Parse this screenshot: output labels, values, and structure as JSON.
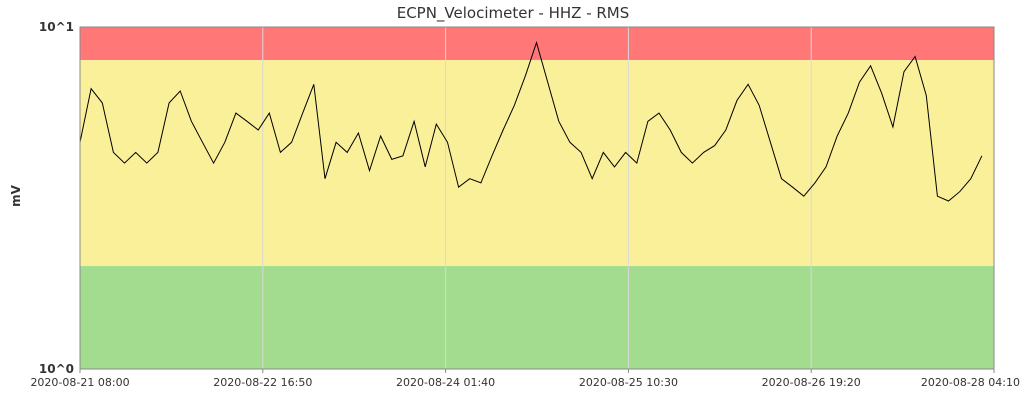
{
  "chart_data": {
    "type": "line",
    "title": "ECPN_Velocimeter - HHZ - RMS",
    "xlabel": "",
    "ylabel": "mV",
    "yscale": "log",
    "ylim": [
      1,
      10
    ],
    "yticks": [
      "10^0",
      "10^1"
    ],
    "xlim": [
      "2020-08-21 08:00",
      "2020-08-28 04:10"
    ],
    "xticks": [
      "2020-08-21 08:00",
      "2020-08-22 16:50",
      "2020-08-24 01:40",
      "2020-08-25 10:30",
      "2020-08-26 19:20",
      "2020-08-28 04:10"
    ],
    "bands": [
      {
        "from": 8.0,
        "to": 10.0,
        "color": "#ff7777"
      },
      {
        "from": 2.0,
        "to": 8.0,
        "color": "#fbf09a"
      },
      {
        "from": 1.0,
        "to": 2.0,
        "color": "#a4dc8f"
      }
    ],
    "line_color": "#000000",
    "grid": true,
    "series": [
      {
        "x": [
          "2020-08-21 08:00",
          "2020-08-21 10:00",
          "2020-08-21 12:00",
          "2020-08-21 14:00",
          "2020-08-21 16:00",
          "2020-08-21 18:00",
          "2020-08-21 20:00",
          "2020-08-21 22:00",
          "2020-08-22 00:00",
          "2020-08-22 02:00",
          "2020-08-22 04:00",
          "2020-08-22 06:00",
          "2020-08-22 08:00",
          "2020-08-22 10:00",
          "2020-08-22 12:00",
          "2020-08-22 14:00",
          "2020-08-22 16:00",
          "2020-08-22 18:00",
          "2020-08-22 20:00",
          "2020-08-22 22:00",
          "2020-08-23 00:00",
          "2020-08-23 02:00",
          "2020-08-23 04:00",
          "2020-08-23 06:00",
          "2020-08-23 08:00",
          "2020-08-23 10:00",
          "2020-08-23 12:00",
          "2020-08-23 14:00",
          "2020-08-23 16:00",
          "2020-08-23 18:00",
          "2020-08-23 20:00",
          "2020-08-23 22:00",
          "2020-08-24 00:00",
          "2020-08-24 02:00",
          "2020-08-24 04:00",
          "2020-08-24 06:00",
          "2020-08-24 08:00",
          "2020-08-24 10:00",
          "2020-08-24 12:00",
          "2020-08-24 14:00",
          "2020-08-24 16:00",
          "2020-08-24 18:00",
          "2020-08-24 20:00",
          "2020-08-24 22:00",
          "2020-08-25 00:00",
          "2020-08-25 02:00",
          "2020-08-25 04:00",
          "2020-08-25 06:00",
          "2020-08-25 08:00",
          "2020-08-25 10:00",
          "2020-08-25 12:00",
          "2020-08-25 14:00",
          "2020-08-25 16:00",
          "2020-08-25 18:00",
          "2020-08-25 20:00",
          "2020-08-25 22:00",
          "2020-08-26 00:00",
          "2020-08-26 02:00",
          "2020-08-26 04:00",
          "2020-08-26 06:00",
          "2020-08-26 08:00",
          "2020-08-26 10:00",
          "2020-08-26 12:00",
          "2020-08-26 14:00",
          "2020-08-26 16:00",
          "2020-08-26 18:00",
          "2020-08-26 20:00",
          "2020-08-26 22:00",
          "2020-08-27 00:00",
          "2020-08-27 02:00",
          "2020-08-27 04:00",
          "2020-08-27 06:00",
          "2020-08-27 08:00",
          "2020-08-27 10:00",
          "2020-08-27 12:00",
          "2020-08-27 14:00",
          "2020-08-27 16:00",
          "2020-08-27 18:00",
          "2020-08-27 20:00",
          "2020-08-27 22:00",
          "2020-08-28 00:00",
          "2020-08-28 02:00"
        ],
        "values": [
          4.6,
          6.6,
          6.0,
          4.3,
          4.0,
          4.3,
          4.0,
          4.3,
          6.0,
          6.5,
          5.3,
          4.6,
          4.0,
          4.6,
          5.6,
          5.3,
          5.0,
          5.6,
          4.3,
          4.6,
          5.6,
          6.8,
          3.6,
          4.6,
          4.3,
          4.9,
          3.8,
          4.8,
          4.1,
          4.2,
          5.3,
          3.9,
          5.2,
          4.6,
          3.4,
          3.6,
          3.5,
          4.2,
          5.0,
          5.9,
          7.2,
          9.0,
          6.9,
          5.3,
          4.6,
          4.3,
          3.6,
          4.3,
          3.9,
          4.3,
          4.0,
          5.3,
          5.6,
          5.0,
          4.3,
          4.0,
          4.3,
          4.5,
          5.0,
          6.1,
          6.8,
          5.9,
          4.6,
          3.6,
          3.4,
          3.2,
          3.5,
          3.9,
          4.8,
          5.6,
          6.9,
          7.7,
          6.4,
          5.1,
          7.4,
          8.2,
          6.3,
          3.2,
          3.1,
          3.3,
          3.6,
          4.2
        ]
      }
    ]
  }
}
